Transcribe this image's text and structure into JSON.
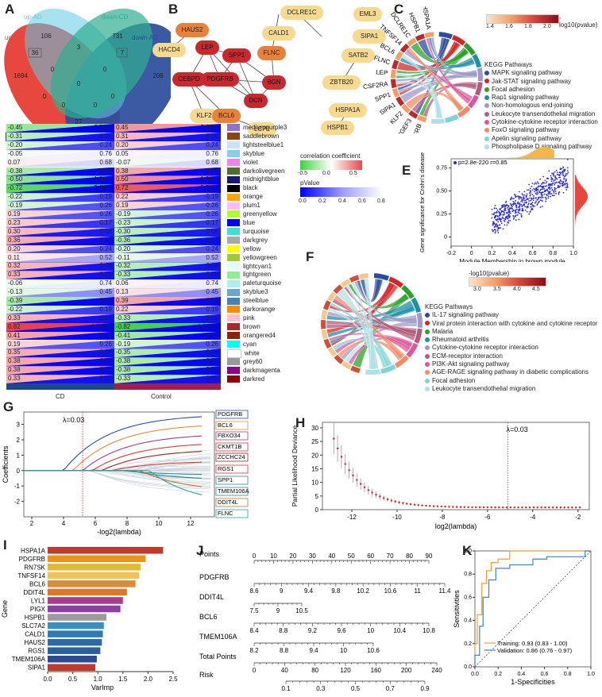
{
  "panels": {
    "A": "A",
    "B": "B",
    "C": "C",
    "D": "D",
    "E": "E",
    "F": "F",
    "G": "G",
    "H": "H",
    "I": "I",
    "J": "J",
    "K": "K"
  },
  "venn": {
    "labels": {
      "up_ad": "up-AD",
      "down_cd": "down-CD",
      "up_cd": "up-CD",
      "down_ad": "down-AD"
    },
    "colors": {
      "up_cd": "#e8473d",
      "up_ad": "#5ecbe6",
      "down_cd": "#2fae8e",
      "down_ad": "#2b4c9b"
    },
    "counts": {
      "n106": "106",
      "n731": "731",
      "n36": "36",
      "n3": "3",
      "n7": "7",
      "n1694": "1694",
      "n0a": "0",
      "n0b": "0",
      "n208": "208",
      "n0c": "0",
      "n0d": "0",
      "n0e": "0",
      "n0f": "0",
      "n27": "27",
      "n0g": "0"
    }
  },
  "network": {
    "nodes": [
      "DCLRE1C",
      "EML3",
      "HAUS2",
      "CALD1",
      "SIPA1",
      "HACD4",
      "LEP",
      "SPP1",
      "FLNC",
      "SATB2",
      "CEBPD",
      "PDGFRB",
      "BGN",
      "ZBTB20",
      "DCN",
      "HSPA1A",
      "KLF2",
      "BCL6",
      "LCP1",
      "HSPB1"
    ],
    "colors": {
      "light": "#f7d98f",
      "orange": "#e8823a",
      "red": "#c8282e"
    }
  },
  "chordC": {
    "genes": [
      "PDGFRB",
      "RAPGEF3",
      "KLF2",
      "SIPA1",
      "SPP1",
      "CSF2RA",
      "LEP",
      "FLNC",
      "BCL6",
      "TNFSF14",
      "DCLRE1C",
      "HSPB1",
      "HSPA1A"
    ],
    "legend_title": "-log10(pvalue)",
    "ticks": [
      "1.4",
      "1.6",
      "1.8",
      "2.0"
    ],
    "kegg_title": "KEGG Pathways",
    "pathways": [
      {
        "name": "MAPK signaling pathway",
        "color": "#2b4c9b"
      },
      {
        "name": "Jak-STAT signaling pathway",
        "color": "#d62728"
      },
      {
        "name": "Focal adhesion",
        "color": "#2ca02c"
      },
      {
        "name": "Rap1 signaling pathway",
        "color": "#1f8fa8"
      },
      {
        "name": "Non-homologous end-joining",
        "color": "#9e9ac8"
      },
      {
        "name": "Leukocyte transendothelial migration",
        "color": "#b45a7a"
      },
      {
        "name": "Cytokine-cytokine receptor interaction",
        "color": "#e0559a"
      },
      {
        "name": "FoxO signaling pathway",
        "color": "#f28b66"
      },
      {
        "name": "Apelin signaling pathway",
        "color": "#7ed3d6"
      },
      {
        "name": "Phospholipase D signaling pathway",
        "color": "#b0e0e6"
      }
    ]
  },
  "heatmap": {
    "groups": [
      "CD",
      "Control"
    ],
    "rows": [
      {
        "m": "mediumpurple3",
        "cd": "-0.45",
        "cdp": "5.5e-3",
        "ct": "0.45",
        "ctp": "5.6e-3",
        "col": "#8f75c9"
      },
      {
        "m": "saddlebrown",
        "cd": "-0.31",
        "cdp": "0.06",
        "ct": "0.31",
        "ctp": "0.06",
        "col": "#8b4513"
      },
      {
        "m": "lightsteelblue1",
        "cd": "-0.20",
        "cdp": "0.24",
        "ct": "0.20",
        "ctp": "0.24",
        "col": "#cae1ff"
      },
      {
        "m": "skyblue",
        "cd": "-0.05",
        "cdp": "0.76",
        "ct": "0.05",
        "ctp": "0.76",
        "col": "#87ceeb"
      },
      {
        "m": "violet",
        "cd": "0.07",
        "cdp": "0.68",
        "ct": "-0.07",
        "ctp": "0.68",
        "col": "#ee82ee"
      },
      {
        "m": "darkolivegreen",
        "cd": "-0.38",
        "cdp": "0.02",
        "ct": "0.38",
        "ctp": "0.02",
        "col": "#556b2f"
      },
      {
        "m": "midnightblue",
        "cd": "-0.50",
        "cdp": "1.9e-3",
        "ct": "0.50",
        "ctp": "1.9e-3",
        "col": "#191970"
      },
      {
        "m": "black",
        "cd": "-0.72",
        "cdp": "5.6e-7",
        "ct": "0.72",
        "ctp": "5.7e-7",
        "col": "#000000"
      },
      {
        "m": "orange",
        "cd": "-0.22",
        "cdp": "0.19",
        "ct": "0.22",
        "ctp": "0.19",
        "col": "#ffa500"
      },
      {
        "m": "plum1",
        "cd": "-0.19",
        "cdp": "0.26",
        "ct": "0.19",
        "ctp": "0.26",
        "col": "#ffbbff"
      },
      {
        "m": "greenyellow",
        "cd": "0.19",
        "cdp": "0.26",
        "ct": "-0.19",
        "ctp": "0.26",
        "col": "#adff2f"
      },
      {
        "m": "blue",
        "cd": "0.23",
        "cdp": "0.17",
        "ct": "-0.23",
        "ctp": "0.17",
        "col": "#0000ff"
      },
      {
        "m": "turquoise",
        "cd": "0.30",
        "cdp": "0.08",
        "ct": "-0.30",
        "ctp": "0.08",
        "col": "#40e0d0"
      },
      {
        "m": "darkgrey",
        "cd": "0.36",
        "cdp": "0.03",
        "ct": "-0.36",
        "ctp": "0.03",
        "col": "#a9a9a9"
      },
      {
        "m": "yellow",
        "cd": "0.20",
        "cdp": "0.24",
        "ct": "-0.20",
        "ctp": "0.24",
        "col": "#ffff00"
      },
      {
        "m": "yellowgreen",
        "cd": "0.11",
        "cdp": "0.52",
        "ct": "-0.11",
        "ctp": "0.52",
        "col": "#9acd32"
      },
      {
        "m": "lightcyan1",
        "cd": "0.32",
        "cdp": "0.06",
        "ct": "-0.32",
        "ctp": "0.06",
        "col": "#e0ffff"
      },
      {
        "m": "lightgreen",
        "cd": "0.33",
        "cdp": "0.05",
        "ct": "-0.33",
        "ctp": "0.05",
        "col": "#90ee90"
      },
      {
        "m": "paleturquoise",
        "cd": "-0.06",
        "cdp": "0.74",
        "ct": "0.06",
        "ctp": "0.74",
        "col": "#afeeee"
      },
      {
        "m": "skyblue3",
        "cd": "-0.13",
        "cdp": "0.45",
        "ct": "0.13",
        "ctp": "0.45",
        "col": "#6ca6cd"
      },
      {
        "m": "steelblue",
        "cd": "-0.39",
        "cdp": "0.02",
        "ct": "0.39",
        "ctp": "0.02",
        "col": "#4682b4"
      },
      {
        "m": "darkorange",
        "cd": "-0.22",
        "cdp": "0.19",
        "ct": "0.22",
        "ctp": "0.19",
        "col": "#ff8c00"
      },
      {
        "m": "pink",
        "cd": "0.33",
        "cdp": "0.05",
        "ct": "-0.33",
        "ctp": "0.05",
        "col": "#ffc0cb"
      },
      {
        "m": "brown",
        "cd": "0.82",
        "cdp": "4.6e-10",
        "ct": "-0.82",
        "ctp": "4.6e-10",
        "col": "#a52a2a"
      },
      {
        "m": "orangered4",
        "cd": "0.41",
        "cdp": "0.01",
        "ct": "-0.41",
        "ctp": "0.01",
        "col": "#8b2500"
      },
      {
        "m": "cyan",
        "cd": "0.19",
        "cdp": "0.26",
        "ct": "-0.19",
        "ctp": "0.26",
        "col": "#00ffff"
      },
      {
        "m": "white",
        "cd": "0.35",
        "cdp": "0.04",
        "ct": "-0.35",
        "ctp": "0.04",
        "col": "#ffffff"
      },
      {
        "m": "grey60",
        "cd": "0.38",
        "cdp": "0.02",
        "ct": "-0.38",
        "ctp": "0.02",
        "col": "#999999"
      },
      {
        "m": "darkmagenta",
        "cd": "0.38",
        "cdp": "0.02",
        "ct": "-0.38",
        "ctp": "0.02",
        "col": "#8b008b"
      },
      {
        "m": "darkred",
        "cd": "0.33",
        "cdp": "0.05",
        "ct": "-0.33",
        "ctp": "0.05",
        "col": "#8b0000"
      }
    ],
    "corr_title": "correlation coefficient",
    "corr_ticks": [
      "-0.5",
      "0.0",
      "0.5"
    ],
    "p_title": "pValue",
    "p_ticks": [
      "0.0",
      "0.2",
      "0.4",
      "0.6",
      "0.8"
    ]
  },
  "chart_data": [
    {
      "panel": "E",
      "type": "scatter",
      "title": "",
      "annotation": "p=2.8e-220  r=0.85",
      "xlabel": "Module Membership in brown module",
      "ylabel": "Gene significance for Crohn's disease",
      "xlim": [
        -0.2,
        1.0
      ],
      "ylim": [
        -0.1,
        0.85
      ],
      "xticks": [
        "-0.2",
        "0",
        "0.2",
        "0.4",
        "0.6",
        "0.8",
        "1.0"
      ],
      "yticks": [
        "0",
        "0.25",
        "0.50",
        "0.75"
      ],
      "trend": {
        "slope": 0.69,
        "intercept": 0.02,
        "n": 600
      }
    },
    {
      "panel": "G",
      "type": "line",
      "xlabel": "-log2(lambda)",
      "ylabel": "Coefficients",
      "xlim": [
        1.5,
        13.5
      ],
      "ylim": [
        -3,
        3.8
      ],
      "xticks": [
        "2",
        "4",
        "6",
        "8",
        "10",
        "12"
      ],
      "yticks": [
        "-2",
        "-1",
        "0",
        "1",
        "2",
        "3"
      ],
      "lambda_label": "λ=0.03",
      "lambda_x": 5.2,
      "genes": [
        "PDGFRB",
        "BCL6",
        "FBXO34",
        "CKMT1B",
        "ZCCHC24",
        "RGS1",
        "SPP1",
        "TMEM106A",
        "DDIT4L",
        "FLNC"
      ],
      "end_values": [
        3.5,
        2.9,
        2.25,
        1.7,
        1.25,
        0.55,
        -0.25,
        -0.5,
        -1.05,
        -1.6
      ]
    },
    {
      "panel": "H",
      "type": "scatter",
      "xlabel": "log2(lambda)",
      "ylabel": "Partial Likelihood Deviance",
      "xlim": [
        -13.3,
        -1.5
      ],
      "ylim": [
        0,
        32
      ],
      "xticks": [
        "-12",
        "-10",
        "-8",
        "-6",
        "-4",
        "-2"
      ],
      "yticks": [
        "0",
        "5",
        "10",
        "15",
        "20",
        "25",
        "30"
      ],
      "lambda_label": "λ=0.03",
      "lambda_x": -5.1,
      "curve": {
        "start": 26,
        "floor": 0.8,
        "decay": 0.9
      }
    },
    {
      "panel": "I",
      "type": "bar",
      "xlabel": "VarImp",
      "ylabel": "Gene",
      "xlim": [
        0,
        2.5
      ],
      "xticks": [
        "0.0",
        "0.5",
        "1.0",
        "1.5",
        "2.0",
        "2.5"
      ],
      "categories": [
        "HSPA1A",
        "PDGFRB",
        "RN7SK",
        "TNFSF14",
        "BCL6",
        "DDIT4L",
        "LYL1",
        "PIGX",
        "HSPB1",
        "SLC7A2",
        "CALD1",
        "HAUS2",
        "RGS1",
        "TMEM106A",
        "SIPA1"
      ],
      "values": [
        2.3,
        1.95,
        1.85,
        1.82,
        1.75,
        1.58,
        1.5,
        1.45,
        1.17,
        1.12,
        1.1,
        1.08,
        1.05,
        0.98,
        0.95
      ],
      "colors": [
        "#c0392b",
        "#e8941a",
        "#e0b83a",
        "#f0c35a",
        "#d98c3a",
        "#d6792e",
        "#a63d8a",
        "#8e3fa0",
        "#9b9b9b",
        "#3a8fbf",
        "#2f7ab3",
        "#2a6aa8",
        "#2a5fa0",
        "#2c4a8f",
        "#c0392b"
      ]
    },
    {
      "panel": "K",
      "type": "line",
      "xlabel": "1-Specificities",
      "ylabel": "Sensitivities",
      "xlim": [
        0,
        1
      ],
      "ylim": [
        0,
        1
      ],
      "xticks": [
        "0.0",
        "0.2",
        "0.4",
        "0.6",
        "0.8",
        "1.0"
      ],
      "yticks": [
        "0.0",
        "0.2",
        "0.4",
        "0.6",
        "0.8",
        "1.0"
      ],
      "series": [
        {
          "name": "Training:",
          "auc": "0.93 (0.83 - 1.00)",
          "color": "#f39c3a",
          "x": [
            0,
            0,
            0.02,
            0.02,
            0.06,
            0.06,
            0.1,
            0.1,
            0.14,
            0.14,
            0.2,
            0.2,
            0.3,
            0.3,
            0.42,
            0.42,
            1
          ],
          "y": [
            0,
            0.2,
            0.2,
            0.45,
            0.45,
            0.72,
            0.72,
            0.83,
            0.83,
            0.9,
            0.9,
            0.93,
            0.93,
            1.0,
            1.0,
            1.0,
            1.0
          ]
        },
        {
          "name": "Validation:",
          "auc": "0.86 (0.76 - 0.97)",
          "color": "#3a87c9",
          "x": [
            0,
            0,
            0.04,
            0.04,
            0.07,
            0.07,
            0.12,
            0.12,
            0.18,
            0.18,
            0.3,
            0.3,
            0.5,
            0.5,
            0.62,
            0.62,
            0.95,
            0.95,
            1
          ],
          "y": [
            0,
            0.1,
            0.1,
            0.35,
            0.35,
            0.6,
            0.6,
            0.75,
            0.75,
            0.85,
            0.85,
            0.88,
            0.88,
            0.93,
            0.93,
            0.95,
            0.95,
            1.0,
            1.0
          ]
        }
      ]
    }
  ],
  "nomogram": {
    "rows": [
      {
        "label": "Points",
        "ticks": [
          "0",
          "10",
          "20",
          "30",
          "40",
          "50",
          "60",
          "70",
          "80",
          "90"
        ]
      },
      {
        "label": "PDGFRB",
        "ticks": [
          "8.6",
          "9",
          "9.4",
          "9.8",
          "10.2",
          "10.6",
          "11",
          "11.4"
        ]
      },
      {
        "label": "DDIT4L",
        "ticks": [
          "7.5",
          "9",
          "10.5"
        ]
      },
      {
        "label": "BCL6",
        "ticks": [
          "8.4",
          "8.8",
          "9.2",
          "9.6",
          "10",
          "10.4",
          "10.8"
        ]
      },
      {
        "label": "TMEM106A",
        "ticks": [
          "8.2",
          "8.8",
          "9.4",
          "10",
          "10.6"
        ]
      },
      {
        "label": "Total Points",
        "ticks": [
          "0",
          "40",
          "80",
          "120",
          "160",
          "200",
          "240"
        ]
      },
      {
        "label": "Risk",
        "ticks": [
          "0.1",
          "0.3",
          "0.5",
          "0.7",
          "0.9"
        ]
      }
    ]
  },
  "chordF": {
    "legend_title": "-log10(pvalue)",
    "ticks": [
      "3.0",
      "3.5",
      "4.0",
      "4.5"
    ],
    "kegg_title": "KEGG Pathways",
    "pathways": [
      {
        "name": "IL-17 signaling pathway",
        "color": "#2b4c9b"
      },
      {
        "name": "Viral protein interaction with cytokine and cytokine receptor",
        "color": "#d62728"
      },
      {
        "name": "Malaria",
        "color": "#2ca02c"
      },
      {
        "name": "Rheumatoid arthritis",
        "color": "#1f8fa8"
      },
      {
        "name": "Cytokine-cytokine receptor interaction",
        "color": "#9e9ac8"
      },
      {
        "name": "ECM-receptor interaction",
        "color": "#b45a7a"
      },
      {
        "name": "PI3K-Akt signaling pathway",
        "color": "#e0559a"
      },
      {
        "name": "AGE-RAGE signaling pathway in diabetic complications",
        "color": "#f28b66"
      },
      {
        "name": "Focal adhesion",
        "color": "#7ed3d6"
      },
      {
        "name": "Leukocyte transendothelial migration",
        "color": "#b0e0e6"
      }
    ]
  }
}
